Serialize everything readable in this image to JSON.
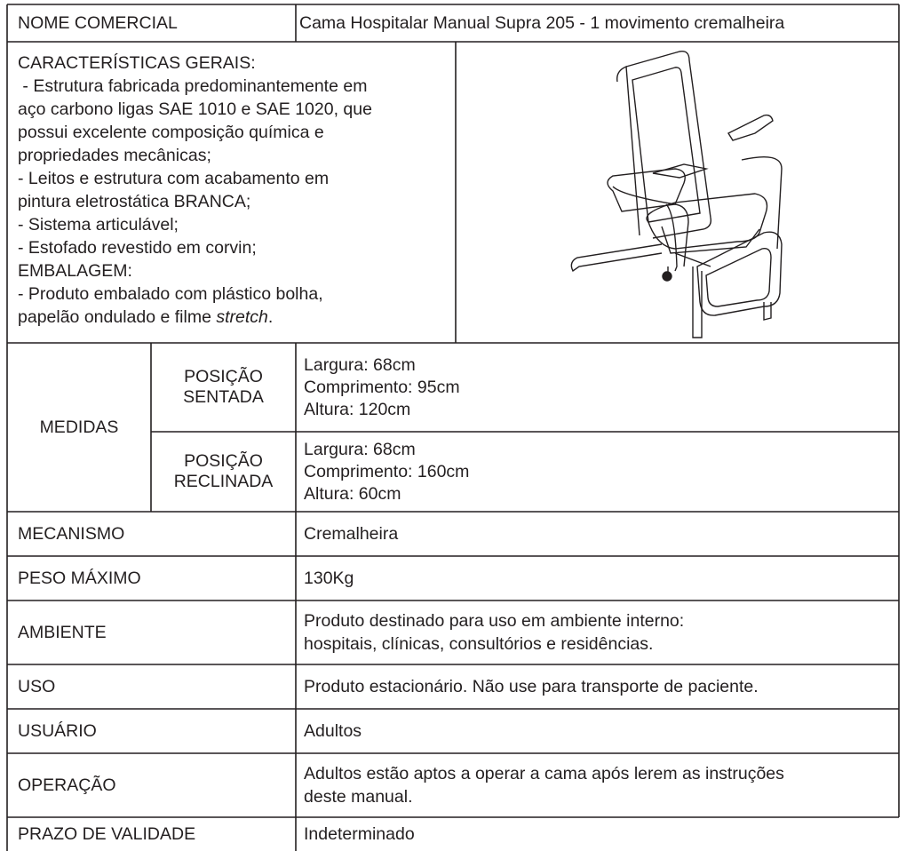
{
  "product": {
    "label": "NOME COMERCIAL",
    "value": "Cama Hospitalar Manual Supra 205 - 1 movimento cremalheira"
  },
  "features": {
    "lines": [
      [
        "CARACTERÍSTICAS GERAIS:"
      ],
      [
        " - Estrutura fabricada predominantemente em"
      ],
      [
        "aço carbono ligas SAE 1010 e SAE 1020, que"
      ],
      [
        "possui excelente composição química e"
      ],
      [
        "propriedades mecânicas;"
      ],
      [
        "- Leitos e estrutura com acabamento em"
      ],
      [
        "pintura eletrostática BRANCA;"
      ],
      [
        "- Sistema articulável;"
      ],
      [
        "- Estofado revestido em corvin;"
      ],
      [
        "EMBALAGEM:"
      ],
      [
        "- Produto embalado com plástico bolha,"
      ],
      [
        "papelão ondulado e filme ",
        "stretch",
        "."
      ]
    ]
  },
  "measures": {
    "label": "MEDIDAS",
    "positions": [
      {
        "label_lines": [
          "POSIÇÃO",
          "SENTADA"
        ],
        "lines": [
          "Largura: 68cm",
          "Comprimento: 95cm",
          "Altura: 120cm"
        ]
      },
      {
        "label_lines": [
          "POSIÇÃO",
          "RECLINADA"
        ],
        "lines": [
          "Largura: 68cm",
          "Comprimento: 160cm",
          "Altura: 60cm"
        ]
      }
    ]
  },
  "rows": [
    {
      "label": "MECANISMO",
      "lines": [
        "Cremalheira"
      ]
    },
    {
      "label": "PESO MÁXIMO",
      "lines": [
        "130Kg"
      ]
    },
    {
      "label": "AMBIENTE",
      "lines": [
        "Produto destinado para uso em ambiente interno:",
        "hospitais, clínicas, consultórios e residências."
      ]
    },
    {
      "label": "USO",
      "lines": [
        "Produto estacionário. Não use para transporte de paciente."
      ]
    },
    {
      "label": "USUÁRIO",
      "lines": [
        "Adultos"
      ]
    },
    {
      "label": "OPERAÇÃO",
      "lines": [
        "Adultos estão aptos a operar a cama após lerem as instruções",
        "deste manual."
      ]
    },
    {
      "label": "PRAZO DE VALIDADE",
      "lines": [
        "Indeterminado"
      ]
    }
  ]
}
